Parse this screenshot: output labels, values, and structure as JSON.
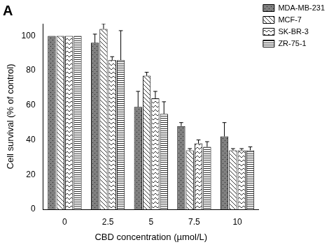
{
  "chart_data": {
    "type": "bar",
    "title": "A",
    "x_label": "CBD concentration (µmol/L)",
    "y_label": "Cell survival (% of control)",
    "categories": [
      "0",
      "2.5",
      "5",
      "7.5",
      "10"
    ],
    "series": [
      {
        "name": "MDA-MB-231",
        "color": "#808080",
        "values": [
          100,
          96,
          59,
          48,
          42
        ],
        "errors": [
          null,
          5,
          9,
          2,
          8
        ]
      },
      {
        "name": "MCF-7",
        "color": "#333333",
        "values": [
          100,
          104,
          77,
          34,
          34
        ],
        "errors": [
          null,
          3,
          2,
          1,
          1
        ]
      },
      {
        "name": "SK-BR-3",
        "color": "#333333",
        "values": [
          100,
          86,
          64,
          38,
          34
        ],
        "errors": [
          null,
          2,
          4,
          2,
          1
        ]
      },
      {
        "name": "ZR-75-1",
        "color": "#333333",
        "values": [
          100,
          86,
          55,
          36,
          34
        ],
        "errors": [
          null,
          17,
          7,
          3,
          2
        ]
      }
    ],
    "ylim": [
      0,
      107
    ],
    "yticks": [
      0,
      20,
      40,
      60,
      80,
      100
    ],
    "grid": false,
    "legend": "top-right"
  }
}
